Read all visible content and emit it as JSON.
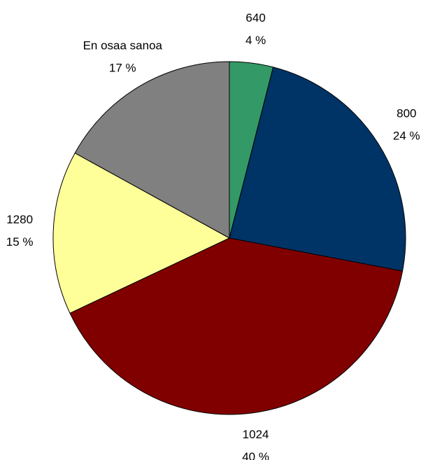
{
  "chart_data": {
    "type": "pie",
    "categories": [
      "640",
      "800",
      "1024",
      "1280",
      "En osaa sanoa"
    ],
    "values": [
      4,
      24,
      40,
      15,
      17
    ],
    "value_labels": [
      "4 %",
      "24 %",
      "40 %",
      "15 %",
      "17 %"
    ],
    "colors": [
      "#339966",
      "#003366",
      "#800000",
      "#ffff99",
      "#808080"
    ]
  }
}
